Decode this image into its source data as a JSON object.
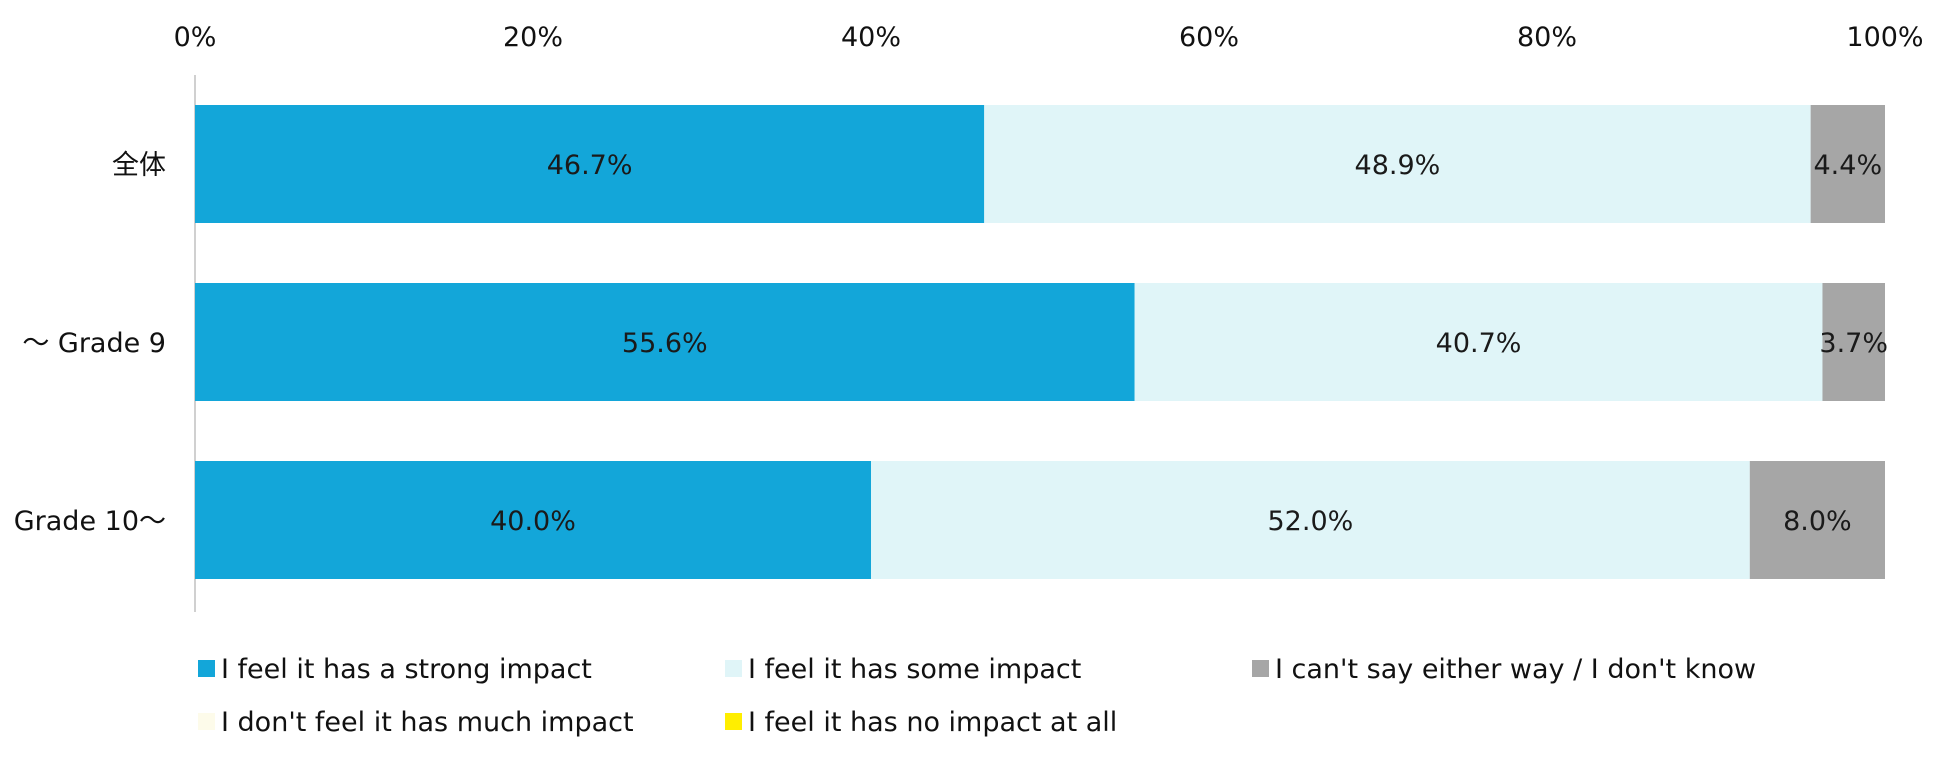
{
  "chart_data": {
    "type": "bar",
    "orientation": "horizontal",
    "stacked": true,
    "categories": [
      "全体",
      "～ Grade 9",
      "Grade 10～"
    ],
    "x_ticks": [
      "0%",
      "20%",
      "40%",
      "60%",
      "80%",
      "100%"
    ],
    "xlim": [
      0,
      100
    ],
    "grid": false,
    "legend_position": "bottom",
    "series": [
      {
        "name": "I feel it has a strong impact",
        "color": "#13a6d9",
        "values": [
          46.7,
          55.6,
          40.0
        ],
        "labels": [
          "46.7%",
          "55.6%",
          "40.0%"
        ]
      },
      {
        "name": "I feel it has some impact",
        "color": "#e0f5f8",
        "values": [
          48.9,
          40.7,
          52.0
        ],
        "labels": [
          "48.9%",
          "40.7%",
          "52.0%"
        ]
      },
      {
        "name": "I can't say either way / I don't know",
        "color": "#a6a6a6",
        "values": [
          4.4,
          3.7,
          8.0
        ],
        "labels": [
          "4.4%",
          "3.7%",
          "8.0%"
        ]
      },
      {
        "name": "I don't feel it has much impact",
        "color": "#fdfbea",
        "values": [
          0,
          0,
          0
        ],
        "labels": [
          "",
          "",
          ""
        ]
      },
      {
        "name": "I feel it has no impact at all",
        "color": "#ffee00",
        "values": [
          0,
          0,
          0
        ],
        "labels": [
          "",
          "",
          ""
        ]
      }
    ]
  }
}
